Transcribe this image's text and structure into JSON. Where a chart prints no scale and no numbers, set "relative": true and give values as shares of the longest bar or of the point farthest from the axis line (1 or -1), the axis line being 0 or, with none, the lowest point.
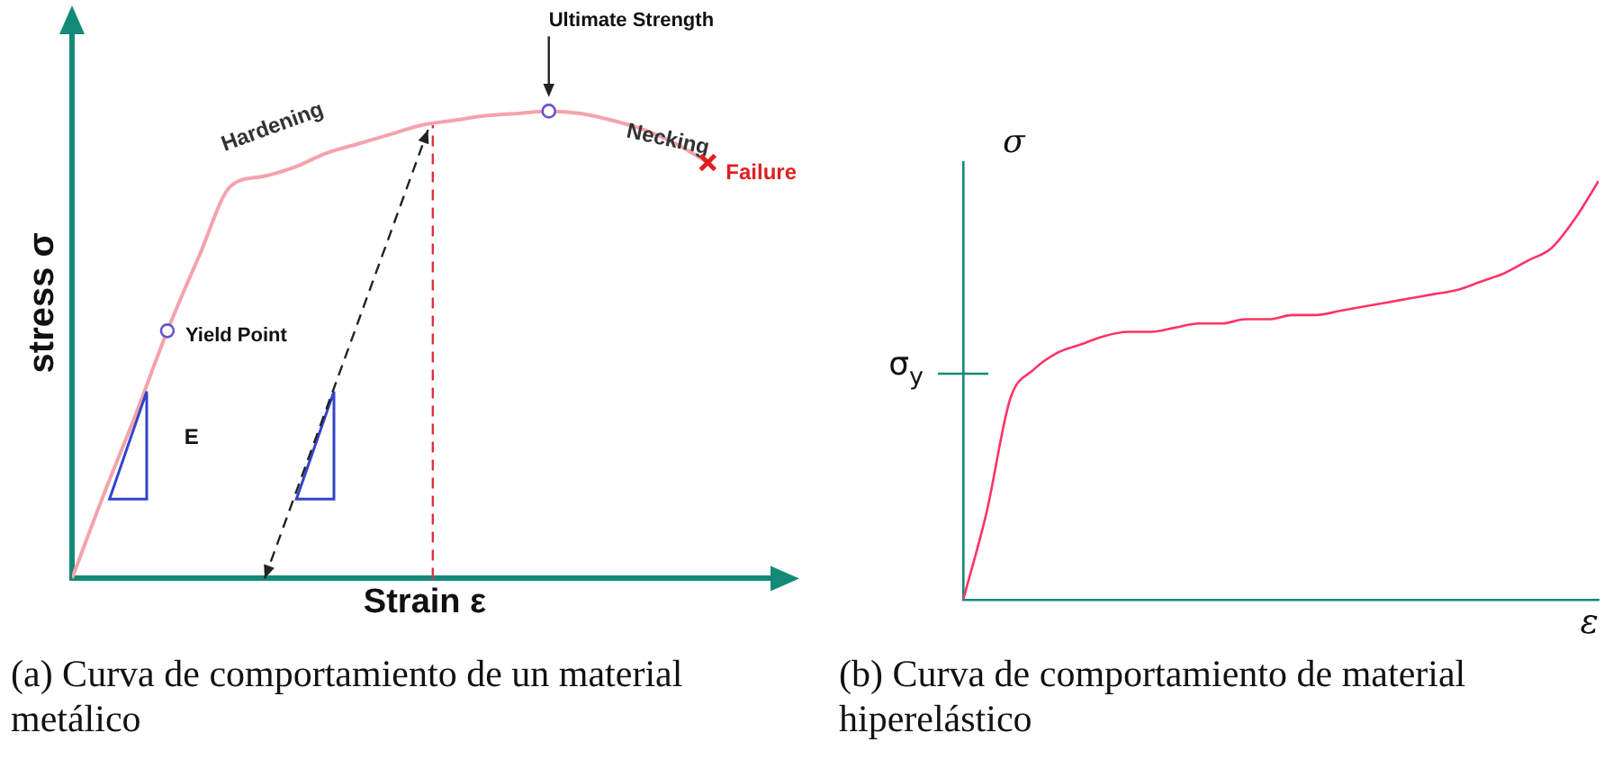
{
  "chart_data": [
    {
      "type": "line",
      "title": "(a) Curva de comportamiento de un material metálico",
      "xlabel": "Strain ε",
      "ylabel": "stress σ",
      "relative": true,
      "categories": [
        null,
        null,
        null,
        null,
        null,
        null,
        null,
        null,
        null,
        null,
        null,
        null,
        null,
        null,
        null,
        null,
        null,
        null,
        null,
        null,
        null
      ],
      "series": [
        {
          "color": "#f4a3ab",
          "values": [
            0,
            0.18,
            0.35,
            0.53,
            0.69,
            0.84,
            0.86,
            0.88,
            0.91,
            0.93,
            0.95,
            0.97,
            0.98,
            0.99,
            0.995,
            1,
            0.995,
            0.98,
            0.96,
            0.93,
            0.89
          ]
        }
      ],
      "annotations": [
        "Ultimate Strength",
        "Hardening",
        "Yield Point",
        "Necking",
        "Failure",
        "E"
      ]
    },
    {
      "type": "line",
      "title": "(b) Curva de comportamiento de material hiperelástico",
      "xlabel": "ε",
      "ylabel": "σ",
      "relative": true,
      "categories": [
        null,
        null,
        null,
        null,
        null,
        null,
        null,
        null,
        null,
        null,
        null,
        null,
        null,
        null,
        null,
        null,
        null,
        null,
        null,
        null,
        null,
        null,
        null,
        null,
        null,
        null,
        null,
        null
      ],
      "series": [
        {
          "color": "#ff3366",
          "values": [
            0,
            0.21,
            0.48,
            0.55,
            0.59,
            0.61,
            0.63,
            0.64,
            0.64,
            0.65,
            0.66,
            0.66,
            0.67,
            0.67,
            0.68,
            0.68,
            0.69,
            0.7,
            0.71,
            0.72,
            0.73,
            0.74,
            0.76,
            0.78,
            0.81,
            0.84,
            0.91,
            1
          ]
        }
      ],
      "ref_lines": [
        {
          "axis": "y",
          "value": 0.54,
          "label": "σ$_{y}$"
        }
      ]
    }
  ]
}
